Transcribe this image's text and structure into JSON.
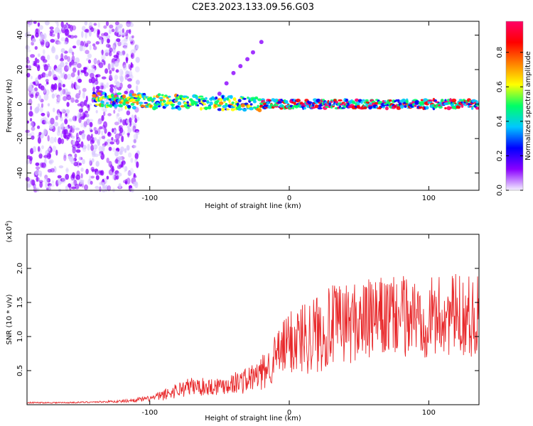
{
  "title": "C2E3.2023.133.09.56.G03",
  "chart_data": [
    {
      "type": "heatmap",
      "xlabel": "Height of straight line (km)",
      "ylabel": "Frequency (Hz)",
      "xlim": [
        -188,
        136
      ],
      "ylim": [
        -50,
        48
      ],
      "xticks": [
        -100,
        0,
        100
      ],
      "yticks": [
        -40,
        -20,
        0,
        20,
        40
      ],
      "colorbar": {
        "label": "Normalized spectral amplitude",
        "range": [
          0,
          0.98
        ],
        "ticks": [
          "0.0",
          "0.2",
          "0.4",
          "0.6",
          "0.8"
        ],
        "colors": [
          "#f4f0ff",
          "#8a00ff",
          "#0000ff",
          "#00c8ff",
          "#00ff66",
          "#ffff00",
          "#ff8000",
          "#ff0000",
          "#ff0066"
        ]
      },
      "features": {
        "noise_region_height_range_km": [
          -188,
          -108
        ],
        "carrier_frequency_hz": 0,
        "rising_branch": [
          [
            -50,
            6
          ],
          [
            -45,
            12
          ],
          [
            -40,
            18
          ],
          [
            -35,
            22
          ],
          [
            -30,
            26
          ],
          [
            -26,
            30
          ],
          [
            -20,
            36
          ]
        ]
      }
    },
    {
      "type": "line",
      "xlabel": "Height of straight line (km)",
      "ylabel": "SNR (10 * v/v)",
      "yscale_label": "(x10",
      "yscale_exp": "4",
      "xlim": [
        -188,
        136
      ],
      "ylim": [
        0,
        2.5
      ],
      "xticks": [
        -100,
        0,
        100
      ],
      "yticks": [
        0.5,
        1.0,
        1.5,
        2.0
      ],
      "ytick_labels": [
        "0.5",
        "1.0",
        "1.5",
        "2.0"
      ],
      "color": "#e8282a",
      "series": [
        {
          "name": "SNR",
          "x": [
            -188,
            -160,
            -140,
            -120,
            -100,
            -90,
            -80,
            -70,
            -60,
            -50,
            -40,
            -30,
            -20,
            -15,
            -10,
            -5,
            0,
            10,
            20,
            30,
            40,
            50,
            60,
            70,
            80,
            90,
            100,
            110,
            120,
            130,
            136
          ],
          "y": [
            0.03,
            0.03,
            0.04,
            0.05,
            0.09,
            0.14,
            0.22,
            0.27,
            0.26,
            0.28,
            0.32,
            0.36,
            0.45,
            0.55,
            0.7,
            0.8,
            0.92,
            1.0,
            1.05,
            1.15,
            1.2,
            1.22,
            1.25,
            1.28,
            1.3,
            1.3,
            1.28,
            1.3,
            1.32,
            1.3,
            1.3
          ],
          "spread": [
            0.01,
            0.01,
            0.01,
            0.02,
            0.04,
            0.08,
            0.12,
            0.14,
            0.13,
            0.14,
            0.16,
            0.2,
            0.25,
            0.3,
            0.35,
            0.4,
            0.5,
            0.55,
            0.6,
            0.6,
            0.6,
            0.6,
            0.6,
            0.6,
            0.6,
            0.6,
            0.6,
            0.6,
            0.6,
            0.6,
            0.6
          ]
        }
      ]
    }
  ]
}
